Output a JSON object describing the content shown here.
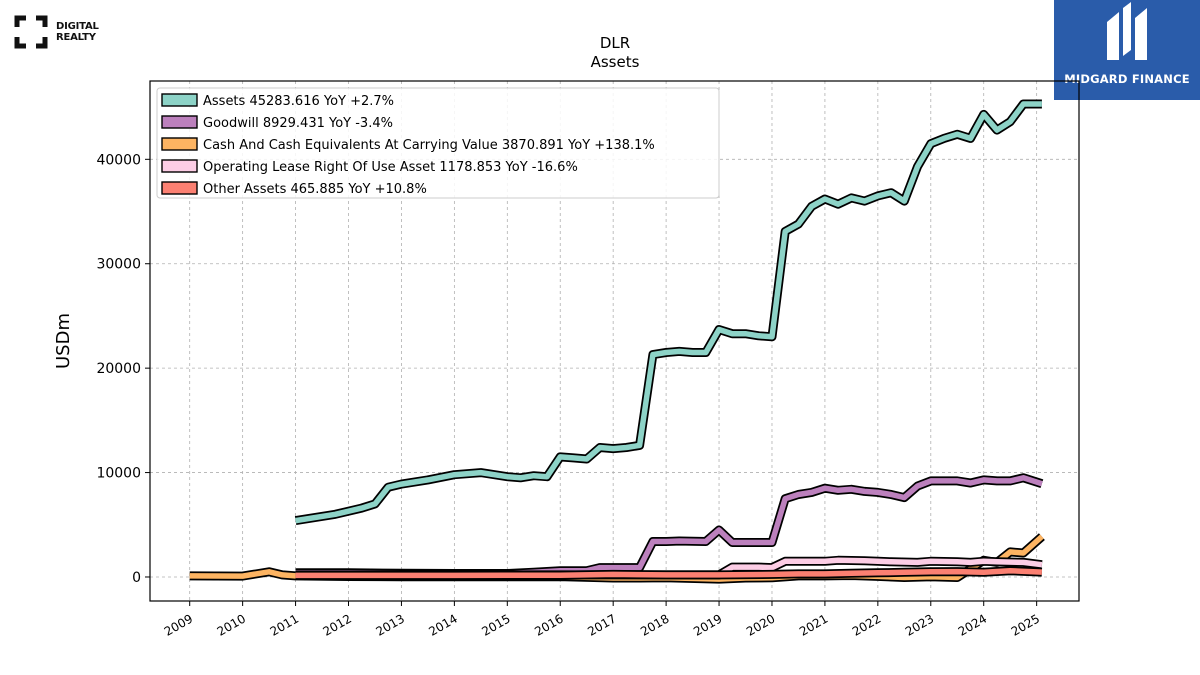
{
  "branding": {
    "company_logo_text": "DIGITAL\nREALTY",
    "company_logo_line1": "DIGITAL",
    "company_logo_line2": "REALTY",
    "watermark_text": "MIDGARD FINANCE",
    "watermark_color": "#2a5caa"
  },
  "chart_data": {
    "type": "line",
    "title": "DLR",
    "subtitle": "Assets",
    "xlabel": "",
    "ylabel": "USDm",
    "xlim": [
      2008.25,
      2025.8
    ],
    "ylim": [
      -2300,
      47500
    ],
    "x_ticks": [
      2009,
      2010,
      2011,
      2012,
      2013,
      2014,
      2015,
      2016,
      2017,
      2018,
      2019,
      2020,
      2021,
      2022,
      2023,
      2024,
      2025
    ],
    "x_tick_labels": [
      "2009",
      "2010",
      "2011",
      "2012",
      "2013",
      "2014",
      "2015",
      "2016",
      "2017",
      "2018",
      "2019",
      "2020",
      "2021",
      "2022",
      "2023",
      "2024",
      "2025"
    ],
    "y_ticks": [
      0,
      10000,
      20000,
      30000,
      40000
    ],
    "y_tick_labels": [
      "0",
      "10000",
      "20000",
      "30000",
      "40000"
    ],
    "grid": true,
    "legend_position": "top-left",
    "series": [
      {
        "name": "Assets",
        "legend_label": "Assets  45283.616 YoY +2.7%",
        "color": "#8dd3c7",
        "points": [
          [
            2011.0,
            5400
          ],
          [
            2011.75,
            6000
          ],
          [
            2012.25,
            6600
          ],
          [
            2012.5,
            7000
          ],
          [
            2012.75,
            8600
          ],
          [
            2013.0,
            8900
          ],
          [
            2013.5,
            9300
          ],
          [
            2014.0,
            9800
          ],
          [
            2014.5,
            10000
          ],
          [
            2015.0,
            9600
          ],
          [
            2015.25,
            9500
          ],
          [
            2015.5,
            9700
          ],
          [
            2015.75,
            9600
          ],
          [
            2016.0,
            11500
          ],
          [
            2016.25,
            11400
          ],
          [
            2016.5,
            11300
          ],
          [
            2016.75,
            12400
          ],
          [
            2017.0,
            12300
          ],
          [
            2017.25,
            12400
          ],
          [
            2017.5,
            12600
          ],
          [
            2017.75,
            21300
          ],
          [
            2018.0,
            21500
          ],
          [
            2018.25,
            21600
          ],
          [
            2018.5,
            21500
          ],
          [
            2018.75,
            21500
          ],
          [
            2019.0,
            23700
          ],
          [
            2019.25,
            23300
          ],
          [
            2019.5,
            23300
          ],
          [
            2019.75,
            23100
          ],
          [
            2020.0,
            23000
          ],
          [
            2020.25,
            33100
          ],
          [
            2020.5,
            33800
          ],
          [
            2020.75,
            35500
          ],
          [
            2021.0,
            36200
          ],
          [
            2021.25,
            35700
          ],
          [
            2021.5,
            36300
          ],
          [
            2021.75,
            36000
          ],
          [
            2022.0,
            36500
          ],
          [
            2022.25,
            36800
          ],
          [
            2022.5,
            36000
          ],
          [
            2022.75,
            39300
          ],
          [
            2023.0,
            41500
          ],
          [
            2023.25,
            42000
          ],
          [
            2023.5,
            42400
          ],
          [
            2023.75,
            42000
          ],
          [
            2024.0,
            44300
          ],
          [
            2024.25,
            42800
          ],
          [
            2024.5,
            43600
          ],
          [
            2024.75,
            45300
          ],
          [
            2025.1,
            45300
          ]
        ]
      },
      {
        "name": "Goodwill",
        "legend_label": "Goodwill  8929.431 YoY -3.4%",
        "color": "#bc80bd",
        "points": [
          [
            2011.0,
            400
          ],
          [
            2012.0,
            400
          ],
          [
            2013.0,
            350
          ],
          [
            2014.0,
            330
          ],
          [
            2015.0,
            330
          ],
          [
            2015.5,
            450
          ],
          [
            2016.0,
            600
          ],
          [
            2016.5,
            600
          ],
          [
            2016.75,
            900
          ],
          [
            2017.0,
            900
          ],
          [
            2017.5,
            900
          ],
          [
            2017.75,
            3400
          ],
          [
            2018.0,
            3400
          ],
          [
            2018.25,
            3450
          ],
          [
            2018.75,
            3400
          ],
          [
            2019.0,
            4500
          ],
          [
            2019.25,
            3300
          ],
          [
            2019.75,
            3300
          ],
          [
            2020.0,
            3300
          ],
          [
            2020.25,
            7500
          ],
          [
            2020.5,
            7900
          ],
          [
            2020.75,
            8100
          ],
          [
            2021.0,
            8500
          ],
          [
            2021.25,
            8300
          ],
          [
            2021.5,
            8400
          ],
          [
            2021.75,
            8200
          ],
          [
            2022.0,
            8100
          ],
          [
            2022.25,
            7900
          ],
          [
            2022.5,
            7600
          ],
          [
            2022.75,
            8700
          ],
          [
            2023.0,
            9200
          ],
          [
            2023.5,
            9200
          ],
          [
            2023.75,
            9000
          ],
          [
            2024.0,
            9300
          ],
          [
            2024.25,
            9200
          ],
          [
            2024.5,
            9200
          ],
          [
            2024.75,
            9500
          ],
          [
            2025.1,
            8929
          ]
        ]
      },
      {
        "name": "Cash And Cash Equivalents At Carrying Value",
        "legend_label": "Cash And Cash Equivalents At Carrying Value  3870.891 YoY +138.1%",
        "color": "#fdb462",
        "points": [
          [
            2009.0,
            100
          ],
          [
            2010.0,
            80
          ],
          [
            2010.5,
            500
          ],
          [
            2010.75,
            200
          ],
          [
            2011.0,
            100
          ],
          [
            2012.0,
            50
          ],
          [
            2013.0,
            30
          ],
          [
            2014.0,
            30
          ],
          [
            2015.0,
            30
          ],
          [
            2016.0,
            40
          ],
          [
            2017.0,
            -100
          ],
          [
            2017.5,
            -100
          ],
          [
            2018.0,
            -80
          ],
          [
            2019.0,
            -200
          ],
          [
            2019.5,
            -100
          ],
          [
            2020.0,
            -80
          ],
          [
            2020.5,
            100
          ],
          [
            2021.0,
            100
          ],
          [
            2021.5,
            140
          ],
          [
            2022.0,
            60
          ],
          [
            2022.5,
            -50
          ],
          [
            2023.0,
            30
          ],
          [
            2023.5,
            -50
          ],
          [
            2024.0,
            1600
          ],
          [
            2024.25,
            1400
          ],
          [
            2024.5,
            2400
          ],
          [
            2024.75,
            2300
          ],
          [
            2025.1,
            3871
          ]
        ]
      },
      {
        "name": "Operating Lease Right Of Use Asset",
        "legend_label": "Operating Lease Right Of Use Asset  1178.853 YoY -16.6%",
        "color": "#fccde5",
        "points": [
          [
            2011.0,
            200
          ],
          [
            2019.0,
            200
          ],
          [
            2019.25,
            950
          ],
          [
            2019.75,
            950
          ],
          [
            2020.0,
            900
          ],
          [
            2020.25,
            1500
          ],
          [
            2020.75,
            1500
          ],
          [
            2021.0,
            1500
          ],
          [
            2021.25,
            1600
          ],
          [
            2021.75,
            1550
          ],
          [
            2022.0,
            1500
          ],
          [
            2022.25,
            1450
          ],
          [
            2022.75,
            1400
          ],
          [
            2023.0,
            1500
          ],
          [
            2023.5,
            1450
          ],
          [
            2023.75,
            1400
          ],
          [
            2024.0,
            1500
          ],
          [
            2024.25,
            1450
          ],
          [
            2024.75,
            1400
          ],
          [
            2025.1,
            1179
          ]
        ]
      },
      {
        "name": "Other Assets",
        "legend_label": "Other Assets  465.885 YoY +10.8%",
        "color": "#fb8072",
        "points": [
          [
            2011.0,
            150
          ],
          [
            2012.0,
            150
          ],
          [
            2013.0,
            150
          ],
          [
            2014.0,
            150
          ],
          [
            2015.0,
            170
          ],
          [
            2016.0,
            170
          ],
          [
            2017.0,
            250
          ],
          [
            2018.0,
            200
          ],
          [
            2019.0,
            200
          ],
          [
            2020.0,
            250
          ],
          [
            2020.5,
            300
          ],
          [
            2021.0,
            300
          ],
          [
            2021.5,
            350
          ],
          [
            2022.0,
            400
          ],
          [
            2022.5,
            450
          ],
          [
            2023.0,
            500
          ],
          [
            2023.5,
            520
          ],
          [
            2024.0,
            450
          ],
          [
            2024.5,
            600
          ],
          [
            2025.1,
            466
          ]
        ]
      }
    ]
  }
}
